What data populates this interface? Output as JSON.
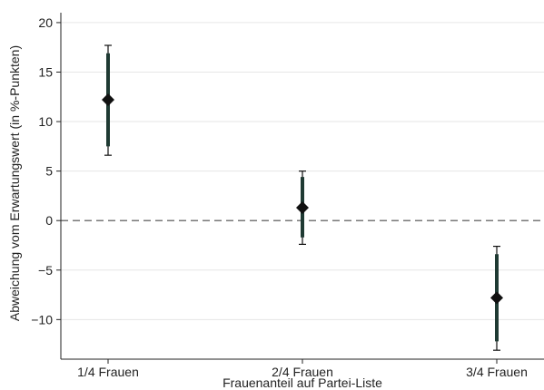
{
  "chart_data": {
    "type": "scatter",
    "title": "",
    "xlabel": "Frauenanteil auf Partei-Liste",
    "ylabel": "Abweichung vom Erwartungswert (in %-Punkten)",
    "categories": [
      "1/4 Frauen",
      "2/4 Frauen",
      "3/4 Frauen"
    ],
    "points": [
      {
        "category": "1/4 Frauen",
        "estimate": 12.2,
        "ci_inner": [
          7.5,
          16.9
        ],
        "ci_outer": [
          6.6,
          17.7
        ]
      },
      {
        "category": "2/4 Frauen",
        "estimate": 1.3,
        "ci_inner": [
          -1.7,
          4.4
        ],
        "ci_outer": [
          -2.4,
          5.0
        ]
      },
      {
        "category": "3/4 Frauen",
        "estimate": -7.8,
        "ci_inner": [
          -12.2,
          -3.4
        ],
        "ci_outer": [
          -13.1,
          -2.6
        ]
      }
    ],
    "ylim": [
      -14,
      21
    ],
    "yticks": [
      -10,
      -5,
      0,
      5,
      10,
      15,
      20
    ],
    "reference_line": 0,
    "grid": true,
    "colors": {
      "marker": "#111111",
      "inner_ci": "#1f3a33",
      "outer_ci": "#111111",
      "grid": "#e6e6e6",
      "reference": "#777777",
      "axis": "#222222"
    }
  }
}
